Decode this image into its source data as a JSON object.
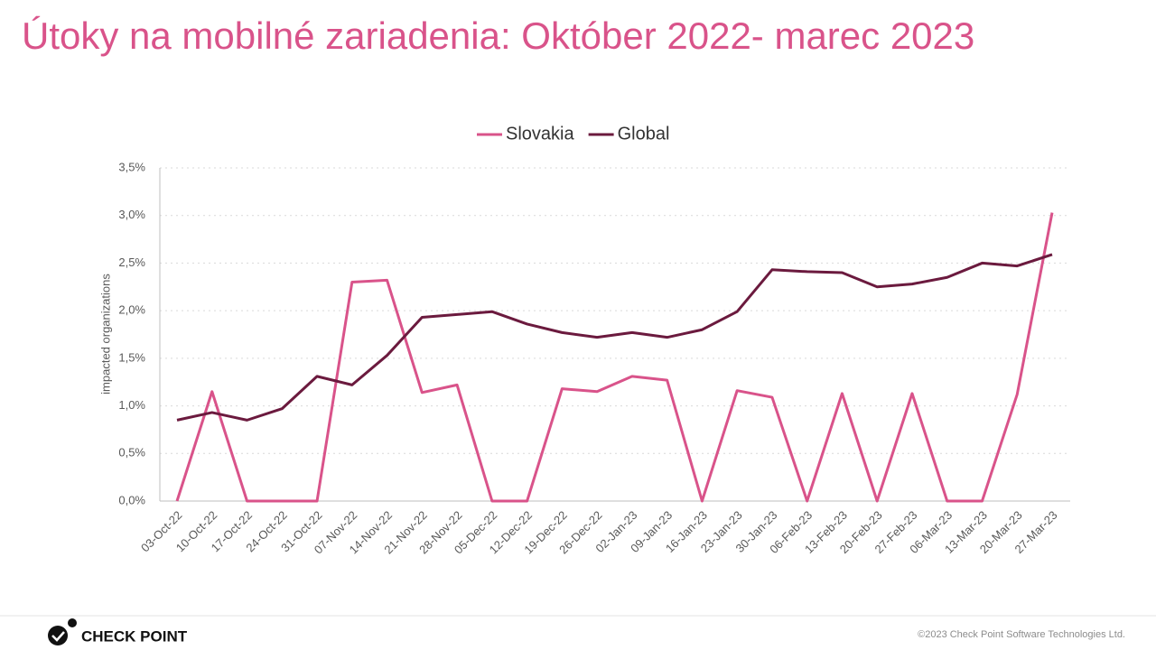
{
  "header": {
    "title": "Útoky na mobilné zariadenia: Október 2022- marec 2023"
  },
  "chart_data": {
    "type": "line",
    "y_label": "impacted organizations",
    "categories": [
      "03-Oct-22",
      "10-Oct-22",
      "17-Oct-22",
      "24-Oct-22",
      "31-Oct-22",
      "07-Nov-22",
      "14-Nov-22",
      "21-Nov-22",
      "28-Nov-22",
      "05-Dec-22",
      "12-Dec-22",
      "19-Dec-22",
      "26-Dec-22",
      "02-Jan-23",
      "09-Jan-23",
      "16-Jan-23",
      "23-Jan-23",
      "30-Jan-23",
      "06-Feb-23",
      "13-Feb-23",
      "20-Feb-23",
      "27-Feb-23",
      "06-Mar-23",
      "13-Mar-23",
      "20-Mar-23",
      "27-Mar-23"
    ],
    "series": [
      {
        "name": "Slovakia",
        "color": "#d9538a",
        "values": [
          0,
          1.15,
          0,
          0,
          0,
          2.3,
          2.32,
          1.14,
          1.22,
          0,
          0,
          1.18,
          1.15,
          1.31,
          1.27,
          0,
          1.16,
          1.09,
          0,
          1.13,
          0,
          1.13,
          0,
          0,
          1.12,
          3.03
        ]
      },
      {
        "name": "Global",
        "color": "#6b1a3e",
        "values": [
          0.85,
          0.93,
          0.85,
          0.97,
          1.31,
          1.22,
          1.53,
          1.93,
          1.96,
          1.99,
          1.86,
          1.77,
          1.72,
          1.77,
          1.72,
          1.8,
          1.99,
          2.43,
          2.41,
          2.4,
          2.25,
          2.28,
          2.35,
          2.5,
          2.47,
          2.59
        ]
      }
    ],
    "ylim": [
      0,
      3.5
    ],
    "yticks": [
      {
        "value": 0,
        "label": "0,0%"
      },
      {
        "value": 0.5,
        "label": "0,5%"
      },
      {
        "value": 1,
        "label": "1,0%"
      },
      {
        "value": 1.5,
        "label": "1,5%"
      },
      {
        "value": 2,
        "label": "2,0%"
      },
      {
        "value": 2.5,
        "label": "2,5%"
      },
      {
        "value": 3,
        "label": "3,0%"
      },
      {
        "value": 3.5,
        "label": "3,5%"
      }
    ],
    "grid": true,
    "legend": "top"
  },
  "footer": {
    "logo": "CHECK POINT",
    "copyright": "©2023 Check Point Software Technologies Ltd."
  }
}
